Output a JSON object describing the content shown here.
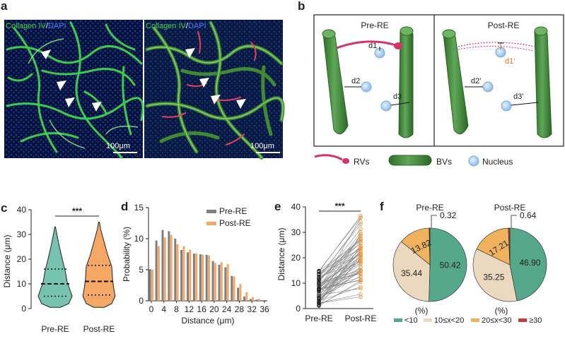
{
  "panels": {
    "a": {
      "label": "a",
      "left_title": {
        "a": "Collagen IV",
        "sep": "/",
        "b": "DAPI"
      },
      "right_title": {
        "a": "Collagen IV",
        "sep": "/",
        "b": "DAPI"
      },
      "scale_left": "100μm",
      "scale_right": "100μm"
    },
    "b": {
      "label": "b",
      "pre_title": "Pre-RE",
      "post_title": "Post-RE",
      "pre_labels": [
        "d1",
        "d2",
        "d3"
      ],
      "post_labels": [
        "d1'",
        "d2'",
        "d3'"
      ],
      "legend": [
        "RVs",
        "BVs",
        "Nucleus"
      ],
      "colors": {
        "rv": "#d6336c",
        "bv": "#3e8e3a",
        "nucleus": "#a9cdf2",
        "d1_post": "#e8731f"
      }
    },
    "c": {
      "label": "c"
    },
    "d": {
      "label": "d"
    },
    "e": {
      "label": "e"
    },
    "f": {
      "label": "f"
    }
  },
  "chart_data": [
    {
      "id": "c",
      "type": "violin",
      "categories": [
        "Pre-RE",
        "Post-RE"
      ],
      "ylabel": "Distance (μm)",
      "ylim": [
        0,
        40
      ],
      "yticks": [
        0,
        10,
        20,
        30,
        40
      ],
      "quartiles": [
        [
          5,
          10,
          16
        ],
        [
          5.5,
          11,
          17.5
        ]
      ],
      "colors": [
        "#76c3b0",
        "#f5a866"
      ],
      "significance": "***"
    },
    {
      "id": "d",
      "type": "bar",
      "xlabel": "Distance (μm)",
      "ylabel": "Probability (%)",
      "ylim": [
        0,
        15
      ],
      "yticks": [
        0,
        5,
        10,
        15
      ],
      "xticks": [
        0,
        4,
        8,
        12,
        16,
        20,
        24,
        28,
        32,
        36
      ],
      "x": [
        0,
        2,
        4,
        6,
        8,
        10,
        12,
        14,
        16,
        18,
        20,
        22,
        24,
        26,
        28,
        30,
        32,
        34
      ],
      "series": [
        {
          "name": "Pre-RE",
          "color": "#7f7f7f",
          "values": [
            5.1,
            9.7,
            11.4,
            11.2,
            10.0,
            8.2,
            7.8,
            7.6,
            7.5,
            7.4,
            6.4,
            5.8,
            5.4,
            4.0,
            2.1,
            0.7,
            0.3,
            0.2
          ]
        },
        {
          "name": "Post-RE",
          "color": "#f5a866",
          "values": [
            5.0,
            8.8,
            10.2,
            10.6,
            9.1,
            8.8,
            8.2,
            7.6,
            7.4,
            7.3,
            6.1,
            6.2,
            5.9,
            3.9,
            2.7,
            1.4,
            0.6,
            0.3
          ]
        }
      ]
    },
    {
      "id": "e",
      "type": "paired-scatter",
      "categories": [
        "Pre-RE",
        "Post-RE"
      ],
      "ylabel": "Distance (μm)",
      "ylim": [
        0,
        40
      ],
      "yticks": [
        0,
        10,
        20,
        30,
        40
      ],
      "significance": "***",
      "pre_color": "#222222",
      "post_color": "#f0922f",
      "n_pairs": 60
    },
    {
      "id": "f",
      "type": "pie",
      "unit_label": "(%)",
      "pies": [
        {
          "title": "Pre-RE",
          "values": [
            50.42,
            35.44,
            13.82,
            0.32
          ],
          "labels": [
            "50.42",
            "35.44",
            "13.82",
            "0.32"
          ]
        },
        {
          "title": "Post-RE",
          "values": [
            46.9,
            35.25,
            17.21,
            0.64
          ],
          "labels": [
            "46.90",
            "35.25",
            "17.21",
            "0.64"
          ]
        }
      ],
      "legend": [
        "<10",
        "10≤x<20",
        "20≤x<30",
        "≥30"
      ],
      "colors": [
        "#55a88a",
        "#ead9bf",
        "#f0b25c",
        "#c23a3a"
      ]
    }
  ]
}
